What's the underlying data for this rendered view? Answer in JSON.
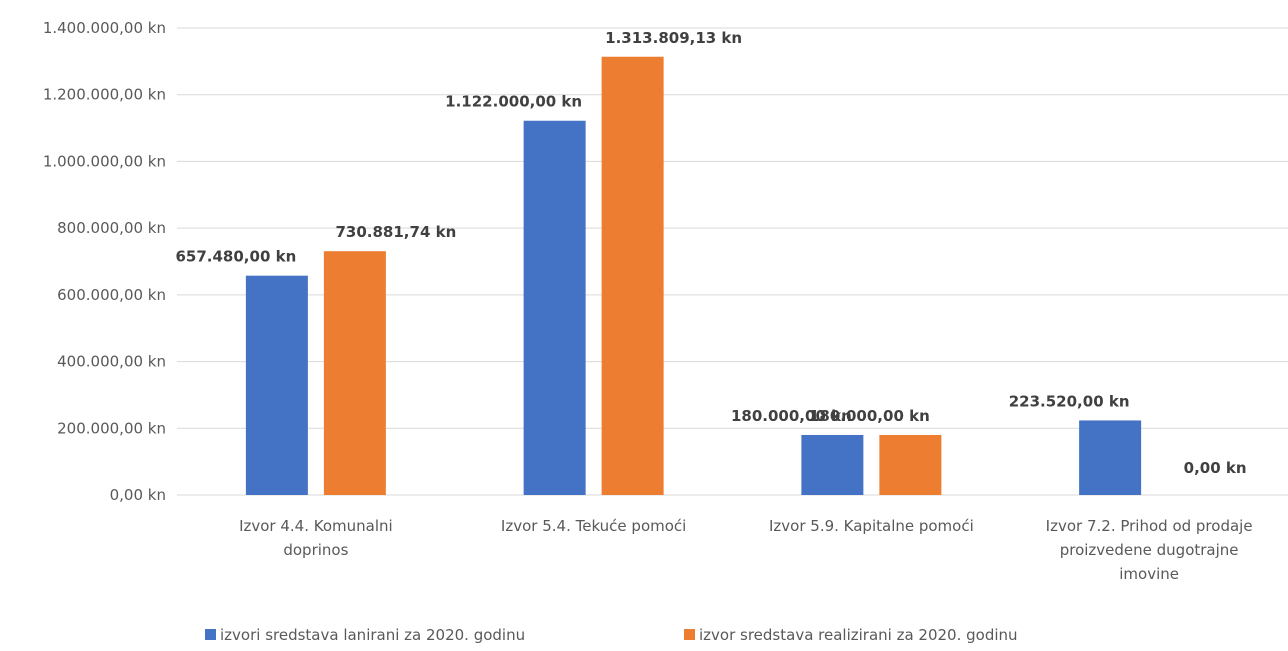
{
  "chart_data": {
    "type": "bar",
    "categories": [
      [
        "Izvor 4.4. Komunalni",
        "doprinos"
      ],
      [
        "Izvor 5.4. Tekuće pomoći"
      ],
      [
        "Izvor 5.9. Kapitalne pomoći"
      ],
      [
        "Izvor 7.2. Prihod od prodaje",
        "proizvedene dugotrajne",
        "imovine"
      ]
    ],
    "series": [
      {
        "name": "izvori sredstava lanirani za 2020. godinu",
        "color": "#4472c4",
        "values": [
          657480.0,
          1122000.0,
          180000.0,
          223520.0
        ],
        "labels": [
          "657.480,00 kn",
          "1.122.000,00 kn",
          "180.000,00 kn",
          "223.520,00 kn"
        ]
      },
      {
        "name": "izvor sredstava realizirani za 2020. godinu",
        "color": "#ed7d31",
        "values": [
          730881.74,
          1313809.13,
          180000.0,
          0.0
        ],
        "labels": [
          "730.881,74 kn",
          "1.313.809,13 kn",
          "180.000,00 kn",
          "0,00 kn"
        ]
      }
    ],
    "ylim": [
      0,
      1400000
    ],
    "yticks": [
      0,
      200000,
      400000,
      600000,
      800000,
      1000000,
      1200000,
      1400000
    ],
    "ytick_labels": [
      "0,00 kn",
      "200.000,00 kn",
      "400.000,00 kn",
      "600.000,00 kn",
      "800.000,00 kn",
      "1.000.000,00 kn",
      "1.200.000,00 kn",
      "1.400.000,00 kn"
    ],
    "title": "",
    "xlabel": "",
    "ylabel": "",
    "grid": true,
    "legend_position": "bottom"
  }
}
